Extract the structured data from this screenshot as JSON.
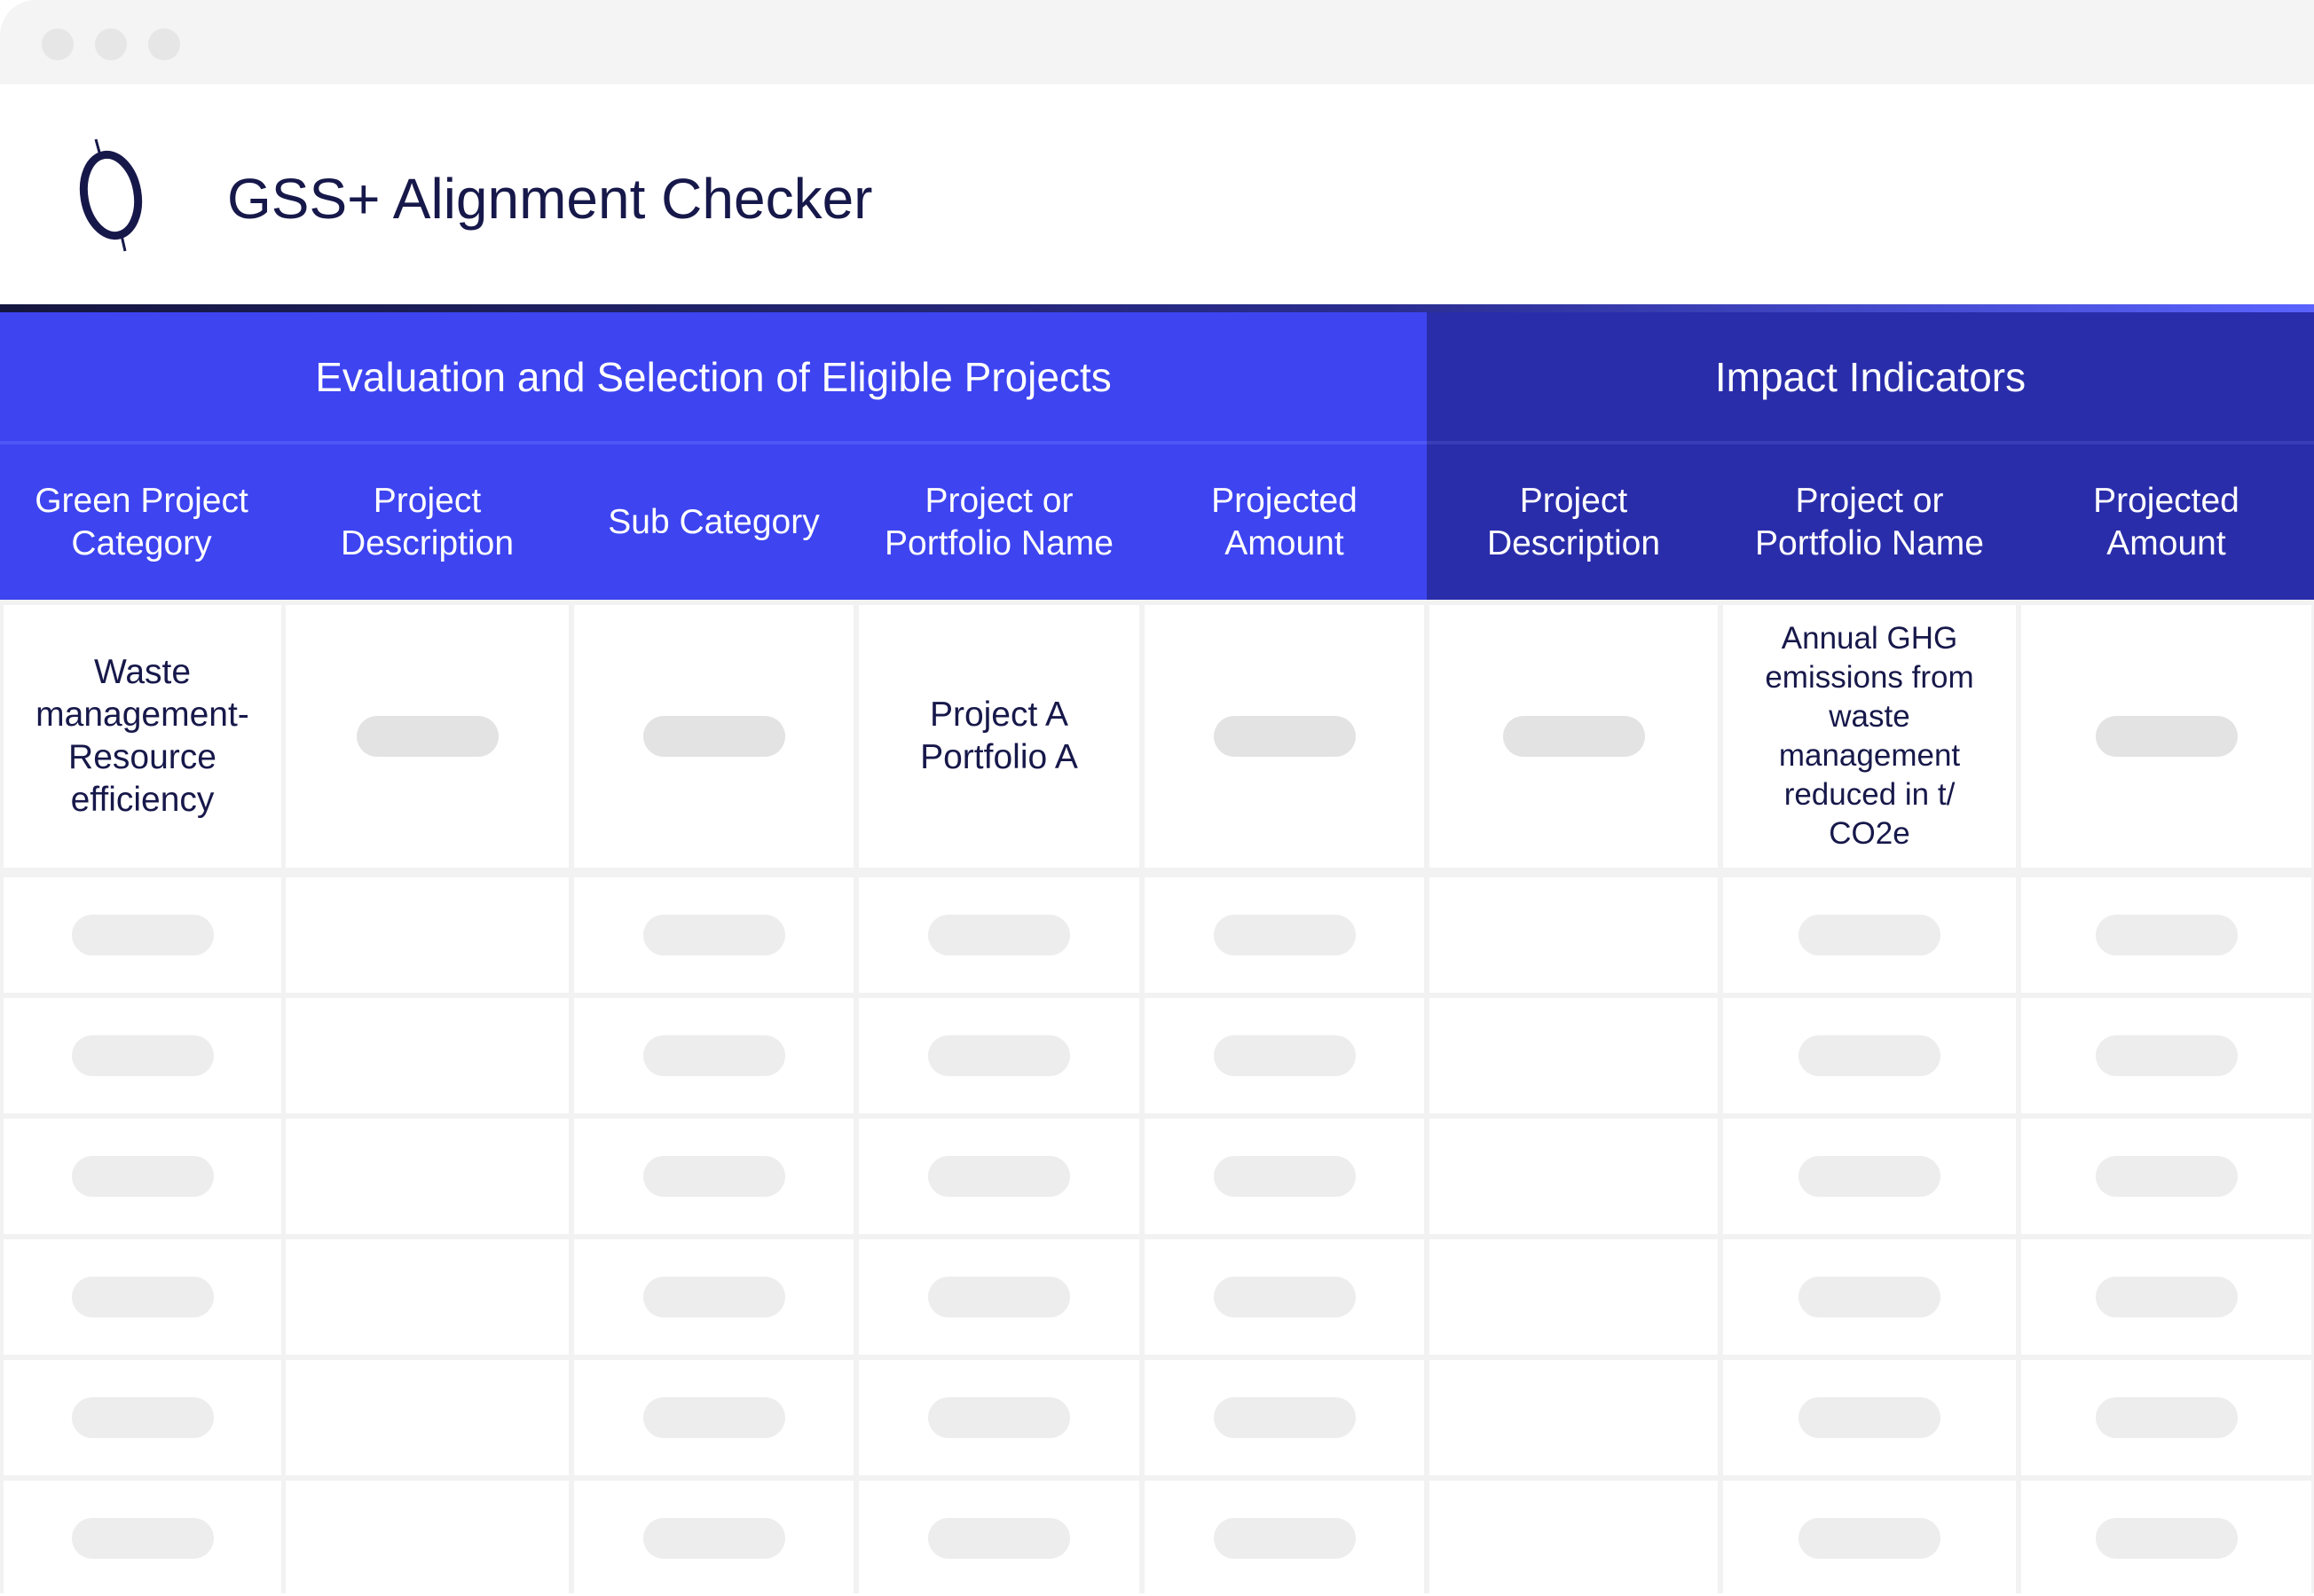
{
  "window": {
    "controls": [
      "close",
      "minimize",
      "maximize"
    ]
  },
  "header": {
    "title": "GSS+ Alignment Checker",
    "logo_icon": "circle-with-slash-logo"
  },
  "colors": {
    "primary": "#3d44f0",
    "secondary": "#2a2daa",
    "text": "#17184a",
    "placeholder": "#e3e3e3"
  },
  "groups": [
    {
      "label": "Evaluation and Selection of Eligible Projects"
    },
    {
      "label": "Impact Indicators"
    }
  ],
  "columns": [
    {
      "label": "Green Project Category",
      "group": 0
    },
    {
      "label": "Project Description",
      "group": 0
    },
    {
      "label": "Sub Category",
      "group": 0
    },
    {
      "label": "Project or Portfolio Name",
      "group": 0
    },
    {
      "label": "Projected Amount",
      "group": 0
    },
    {
      "label": "Project Description",
      "group": 1
    },
    {
      "label": "Project or Portfolio Name",
      "group": 1
    },
    {
      "label": "Projected Amount",
      "group": 1
    }
  ],
  "rows": [
    [
      {
        "text": "Waste management-Resource efficiency"
      },
      {
        "placeholder": true
      },
      {
        "placeholder": true
      },
      {
        "text": "Project A Portfolio A"
      },
      {
        "placeholder": true
      },
      {
        "placeholder": true
      },
      {
        "text": "Annual GHG emissions from waste management reduced in t/ CO2e"
      },
      {
        "placeholder": true
      }
    ],
    [
      {
        "placeholder": true
      },
      {},
      {
        "placeholder": true
      },
      {
        "placeholder": true
      },
      {
        "placeholder": true
      },
      {},
      {
        "placeholder": true
      },
      {
        "placeholder": true
      }
    ],
    [
      {
        "placeholder": true
      },
      {},
      {
        "placeholder": true
      },
      {
        "placeholder": true
      },
      {
        "placeholder": true
      },
      {},
      {
        "placeholder": true
      },
      {
        "placeholder": true
      }
    ],
    [
      {
        "placeholder": true
      },
      {},
      {
        "placeholder": true
      },
      {
        "placeholder": true
      },
      {
        "placeholder": true
      },
      {},
      {
        "placeholder": true
      },
      {
        "placeholder": true
      }
    ],
    [
      {
        "placeholder": true
      },
      {},
      {
        "placeholder": true
      },
      {
        "placeholder": true
      },
      {
        "placeholder": true
      },
      {},
      {
        "placeholder": true
      },
      {
        "placeholder": true
      }
    ],
    [
      {
        "placeholder": true
      },
      {},
      {
        "placeholder": true
      },
      {
        "placeholder": true
      },
      {
        "placeholder": true
      },
      {},
      {
        "placeholder": true
      },
      {
        "placeholder": true
      }
    ],
    [
      {
        "placeholder": true
      },
      {},
      {
        "placeholder": true
      },
      {
        "placeholder": true
      },
      {
        "placeholder": true
      },
      {},
      {
        "placeholder": true
      },
      {
        "placeholder": true
      }
    ]
  ]
}
